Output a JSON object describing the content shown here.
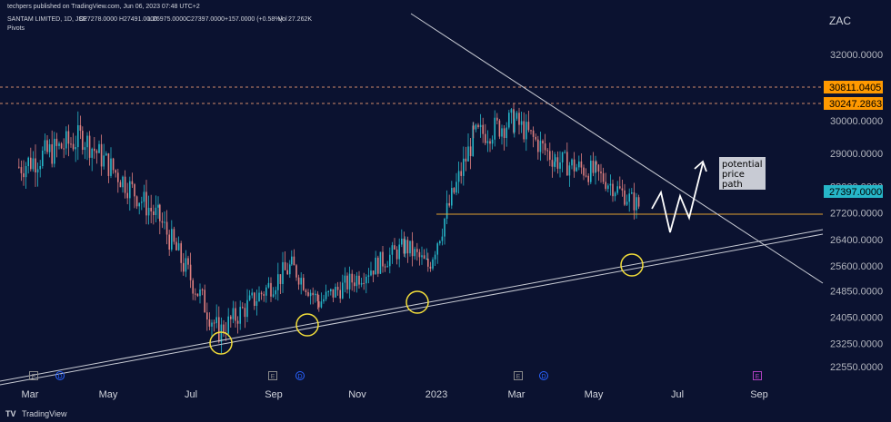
{
  "header": {
    "published": "techpers published on TradingView.com, Jun 06, 2023 07:48 UTC+2",
    "symbol": "SANTAM LIMITED, 1D, JSE",
    "o_label": "O",
    "o_value": "27278.0000",
    "h_label": "H",
    "h_value": "27491.0000",
    "l_label": "L",
    "l_value": "26975.0000",
    "c_label": "C",
    "c_value": "27397.0000",
    "change": "+157.0000 (+0.58%)",
    "vol_label": "Vol",
    "vol_value": "27.262K",
    "indicator": "Pivots"
  },
  "currency": "ZAC",
  "footer": {
    "brand": "TradingView"
  },
  "colors": {
    "background": "#0b1230",
    "up": "#26b6c8",
    "down": "#e07f7f",
    "trend_line": "#c8cbd4",
    "resistance_dash": "#d08a6a",
    "support_line": "#e0a030",
    "circle": "#f2dd3a",
    "price_tag": "#ff9900",
    "last_price_tag": "#26b6c8",
    "event_e": "#8a8a8a",
    "event_d": "#2962ff",
    "event_e_future": "#b040c0"
  },
  "chart_data": {
    "type": "candlestick",
    "x_ticks": [
      "Mar",
      "May",
      "Jul",
      "Sep",
      "Nov",
      "2023",
      "Mar",
      "May",
      "Jul",
      "Sep"
    ],
    "y_ticks": [
      22550,
      23250,
      24050,
      24850,
      25600,
      26400,
      27200,
      28000,
      29000,
      30000,
      30811.0405,
      32000
    ],
    "y_range": [
      22000,
      32600
    ],
    "price_tags": [
      {
        "value": "30811.0405",
        "kind": "level"
      },
      {
        "value": "30247.2863",
        "kind": "level"
      },
      {
        "value": "27397.0000",
        "kind": "last"
      }
    ],
    "annotation": [
      "potential",
      "price",
      "path"
    ],
    "events": [
      "E",
      "D",
      "E",
      "D",
      "E",
      "D",
      "E"
    ],
    "series_segments": [
      {
        "from": "Mar 2022",
        "to": "Apr 2022",
        "start": 28600,
        "end": 29500,
        "vol": 1000
      },
      {
        "from": "Apr 2022",
        "to": "Jun 2022",
        "start": 29500,
        "end": 27000,
        "vol": 900
      },
      {
        "from": "Jun 2022",
        "to": "Jul 2022",
        "start": 27000,
        "end": 23600,
        "vol": 900
      },
      {
        "from": "Jul 2022",
        "to": "Sep 2022",
        "start": 23600,
        "end": 25600,
        "vol": 800
      },
      {
        "from": "Sep 2022",
        "to": "Oct 2022",
        "start": 25600,
        "end": 24500,
        "vol": 700
      },
      {
        "from": "Oct 2022",
        "to": "Dec 2022",
        "start": 24500,
        "end": 26200,
        "vol": 700
      },
      {
        "from": "Dec 2022",
        "to": "Jan 2023",
        "start": 26200,
        "end": 25600,
        "vol": 700
      },
      {
        "from": "Jan 2023",
        "to": "Feb 2023",
        "start": 25600,
        "end": 29500,
        "vol": 900
      },
      {
        "from": "Feb 2023",
        "to": "Mar 2023",
        "start": 29500,
        "end": 30000,
        "vol": 900
      },
      {
        "from": "Mar 2023",
        "to": "Apr 2023",
        "start": 30000,
        "end": 28800,
        "vol": 800
      },
      {
        "from": "Apr 2023",
        "to": "May 2023",
        "start": 28800,
        "end": 28400,
        "vol": 800
      },
      {
        "from": "May 2023",
        "to": "Jun 2023",
        "start": 28400,
        "end": 27397,
        "vol": 700
      }
    ]
  }
}
